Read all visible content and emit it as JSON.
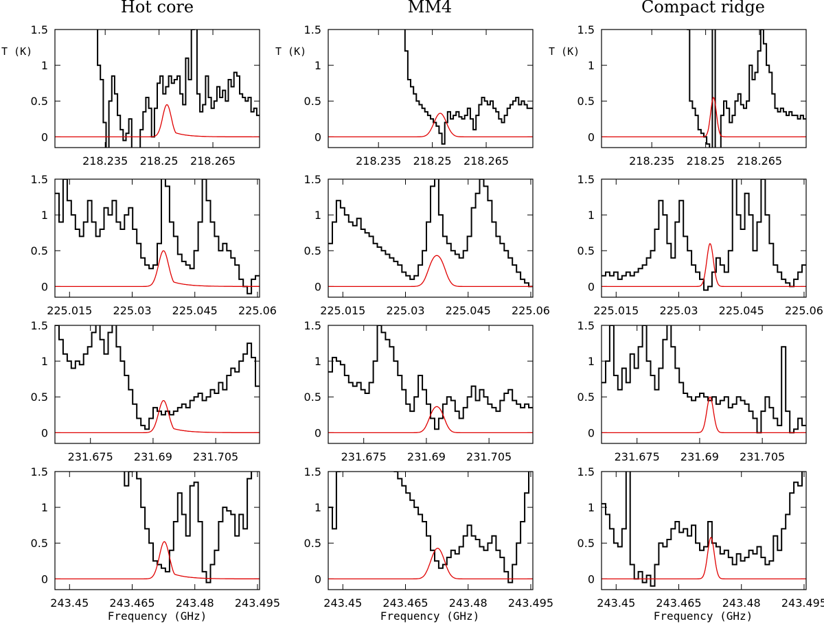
{
  "figure": {
    "columns": [
      "Hot core",
      "MM4",
      "Compact ridge"
    ],
    "y_axis_label": "T (K)",
    "x_axis_label": "Frequency (GHz)",
    "colors": {
      "observed": "#000000",
      "model": "#e00000"
    }
  },
  "chart_data": {
    "type": "line",
    "layout": "grid 4 rows x 3 columns",
    "ylim": [
      -0.15,
      1.5
    ],
    "yticks": [
      0,
      0.5,
      1,
      1.5
    ],
    "ytick_labels": [
      "0",
      "0.5",
      "1",
      "1.5"
    ],
    "rows": [
      {
        "xlim": [
          218.221,
          218.278
        ],
        "xticks": [
          218.235,
          218.25,
          218.265
        ],
        "xtick_labels": [
          "218.235",
          "218.25",
          "218.265"
        ],
        "line_center": 218.2522
      },
      {
        "xlim": [
          225.0115,
          225.0605
        ],
        "xticks": [
          225.015,
          225.03,
          225.045,
          225.06
        ],
        "xtick_labels": [
          "225.015",
          "225.03",
          "225.045",
          "225.06"
        ],
        "line_center": 225.0375
      },
      {
        "xlim": [
          231.6665,
          231.7155
        ],
        "xticks": [
          231.675,
          231.69,
          231.705
        ],
        "xtick_labels": [
          "231.675",
          "231.69",
          "231.705"
        ],
        "line_center": 231.6925
      },
      {
        "xlim": [
          243.4465,
          243.4955
        ],
        "xticks": [
          243.45,
          243.465,
          243.48,
          243.495
        ],
        "xtick_labels": [
          "243.45",
          "243.465",
          "243.48",
          "243.495"
        ],
        "line_center": 243.4727
      }
    ],
    "panels": [
      {
        "column": "Hot core",
        "row": 0,
        "model": {
          "amp": 0.45,
          "width": 0.0012,
          "wing": 1
        },
        "observed": [
          null,
          null,
          null,
          null,
          null,
          null,
          null,
          null,
          null,
          null,
          null,
          null,
          null,
          null,
          1.6,
          1.0,
          0.8,
          0.2,
          -0.2,
          0.5,
          0.85,
          0.6,
          0.3,
          0.1,
          -0.05,
          0.05,
          0.25,
          -0.2,
          -0.2,
          -0.25,
          0.1,
          0.35,
          0.55,
          0.4,
          0.0,
          0.4,
          0.75,
          0.85,
          0.6,
          0.7,
          0.85,
          0.75,
          0.8,
          0.85,
          0.6,
          0.45,
          1.1,
          0.8,
          1.5,
          1.7,
          0.6,
          0.35,
          0.45,
          0.85,
          0.55,
          0.4,
          0.5,
          0.7,
          0.55,
          0.65,
          0.5,
          0.8,
          0.7,
          0.9,
          0.85,
          0.6,
          0.55,
          0.5,
          0.55,
          0.35,
          0.4,
          0.3
        ]
      },
      {
        "column": "MM4",
        "row": 0,
        "model": {
          "amp": 0.3,
          "width": 0.0015,
          "split": 0.0015,
          "wing": 0
        },
        "observed": [
          null,
          null,
          null,
          null,
          null,
          null,
          null,
          null,
          null,
          null,
          null,
          null,
          null,
          null,
          null,
          null,
          null,
          null,
          null,
          null,
          null,
          null,
          null,
          null,
          null,
          null,
          1.8,
          1.2,
          0.8,
          0.7,
          0.6,
          0.5,
          0.45,
          0.4,
          0.35,
          0.3,
          0.25,
          0.2,
          0.15,
          0.05,
          -0.1,
          0.2,
          0.35,
          0.25,
          0.3,
          0.35,
          0.28,
          0.25,
          0.3,
          0.4,
          0.25,
          0.1,
          0.3,
          0.45,
          0.55,
          0.5,
          0.45,
          0.5,
          0.4,
          0.35,
          0.25,
          0.2,
          0.3,
          0.4,
          0.45,
          0.5,
          0.55,
          0.45,
          0.5,
          0.45,
          0.4,
          0.4
        ]
      },
      {
        "column": "Compact ridge",
        "row": 0,
        "model": {
          "amp": 0.55,
          "width": 0.0008,
          "wing": 0
        },
        "observed": [
          null,
          null,
          null,
          null,
          null,
          null,
          null,
          null,
          null,
          null,
          null,
          null,
          null,
          null,
          null,
          null,
          null,
          null,
          null,
          null,
          null,
          null,
          null,
          null,
          null,
          null,
          null,
          null,
          null,
          null,
          1.5,
          0.5,
          0.4,
          0.3,
          0.1,
          0.05,
          0.0,
          -0.1,
          -0.3,
          1.8,
          -0.3,
          -0.3,
          0.3,
          0.5,
          0.4,
          0.2,
          0.3,
          0.5,
          0.6,
          0.45,
          0.4,
          0.5,
          1.0,
          0.8,
          0.9,
          1.2,
          1.5,
          1.3,
          1.0,
          0.9,
          0.6,
          0.4,
          0.35,
          0.4,
          0.35,
          0.3,
          0.35,
          0.3,
          0.3,
          0.25,
          0.3,
          0.25
        ]
      },
      {
        "column": "Hot core",
        "row": 1,
        "model": {
          "amp": 0.5,
          "width": 0.0012,
          "wing": 1
        },
        "observed": [
          1.3,
          0.9,
          1.5,
          1.2,
          1.0,
          0.8,
          0.7,
          0.9,
          1.2,
          0.9,
          0.7,
          0.8,
          1.1,
          1.0,
          1.2,
          0.9,
          0.8,
          1.0,
          1.1,
          0.8,
          0.6,
          0.4,
          0.3,
          0.25,
          0.3,
          0.6,
          1.6,
          1.4,
          0.9,
          0.7,
          0.45,
          0.35,
          0.3,
          0.25,
          0.5,
          0.9,
          1.5,
          1.2,
          0.9,
          0.7,
          0.5,
          0.6,
          0.5,
          0.4,
          0.3,
          0.1,
          0.0,
          -0.1,
          0.1,
          0.15
        ]
      },
      {
        "column": "MM4",
        "row": 1,
        "model": {
          "amp": 0.38,
          "width": 0.0013,
          "split": 0.002,
          "wing": 0
        },
        "observed": [
          0.6,
          0.9,
          1.2,
          1.1,
          1.0,
          0.9,
          0.85,
          0.95,
          0.8,
          0.75,
          0.7,
          0.6,
          0.55,
          0.5,
          0.45,
          0.4,
          0.35,
          0.3,
          0.2,
          0.15,
          0.1,
          0.15,
          0.3,
          0.5,
          0.9,
          1.4,
          1.6,
          1.0,
          0.7,
          0.6,
          0.5,
          0.45,
          0.4,
          0.5,
          0.7,
          1.1,
          1.3,
          1.5,
          1.4,
          1.2,
          0.9,
          0.7,
          0.6,
          0.5,
          0.4,
          0.3,
          0.2,
          0.1,
          0.05,
          0.0
        ]
      },
      {
        "column": "Compact ridge",
        "row": 1,
        "model": {
          "amp": 0.6,
          "width": 0.0008,
          "wing": 0
        },
        "observed": [
          0.15,
          0.2,
          0.15,
          0.2,
          0.1,
          0.15,
          0.2,
          0.15,
          0.2,
          0.25,
          0.3,
          0.4,
          0.5,
          0.8,
          1.2,
          1.0,
          0.6,
          0.4,
          0.9,
          1.2,
          0.7,
          0.5,
          0.3,
          0.2,
          0.1,
          -0.05,
          0.0,
          0.2,
          0.4,
          0.3,
          0.2,
          0.5,
          1.6,
          1.0,
          0.8,
          1.3,
          1.0,
          0.5,
          0.9,
          1.5,
          1.0,
          0.6,
          0.3,
          0.2,
          0.1,
          0.05,
          0.0,
          0.1,
          0.2,
          0.3
        ]
      },
      {
        "column": "Hot core",
        "row": 2,
        "model": {
          "amp": 0.45,
          "width": 0.0012,
          "wing": 1
        },
        "observed": [
          1.5,
          1.3,
          1.1,
          1.0,
          0.9,
          1.0,
          0.95,
          1.1,
          1.2,
          1.4,
          1.6,
          1.3,
          1.1,
          1.4,
          1.6,
          1.2,
          1.0,
          0.8,
          0.6,
          0.4,
          0.2,
          0.1,
          0.05,
          0.2,
          0.35,
          0.3,
          0.25,
          0.3,
          0.25,
          0.3,
          0.35,
          0.4,
          0.35,
          0.45,
          0.5,
          0.55,
          0.45,
          0.5,
          0.6,
          0.55,
          0.7,
          0.6,
          0.8,
          0.9,
          0.85,
          1.0,
          1.1,
          1.25,
          1.05,
          0.65
        ]
      },
      {
        "column": "MM4",
        "row": 2,
        "model": {
          "amp": 0.32,
          "width": 0.0012,
          "split": 0.0018,
          "wing": 0
        },
        "observed": [
          0.85,
          1.05,
          1.0,
          0.95,
          0.8,
          0.7,
          0.65,
          0.7,
          0.6,
          0.55,
          0.7,
          1.0,
          1.5,
          1.4,
          1.3,
          1.2,
          1.0,
          0.8,
          0.6,
          0.4,
          0.3,
          0.5,
          0.8,
          0.6,
          0.4,
          0.2,
          0.05,
          0.2,
          0.4,
          0.5,
          0.45,
          0.3,
          0.2,
          0.35,
          0.5,
          0.65,
          0.45,
          0.6,
          0.5,
          0.4,
          0.35,
          0.3,
          0.45,
          0.55,
          0.6,
          0.45,
          0.4,
          0.35,
          0.4,
          0.35
        ]
      },
      {
        "column": "Compact ridge",
        "row": 2,
        "model": {
          "amp": 0.5,
          "width": 0.0008,
          "wing": 0
        },
        "observed": [
          0.7,
          1.0,
          1.5,
          0.8,
          0.6,
          0.9,
          0.7,
          1.1,
          0.9,
          1.2,
          1.5,
          1.0,
          0.8,
          0.6,
          0.9,
          1.3,
          1.6,
          1.2,
          0.9,
          0.7,
          0.55,
          0.5,
          0.45,
          0.5,
          0.55,
          0.5,
          0.45,
          0.5,
          0.4,
          0.45,
          0.5,
          0.35,
          0.4,
          0.5,
          0.45,
          0.4,
          0.3,
          0.2,
          0.0,
          0.3,
          0.5,
          0.35,
          0.2,
          0.1,
          1.2,
          0.3,
          0.0,
          0.05,
          0.2,
          0.1
        ]
      },
      {
        "column": "Hot core",
        "row": 3,
        "model": {
          "amp": 0.52,
          "width": 0.0012,
          "wing": 1
        },
        "observed": [
          null,
          null,
          null,
          null,
          null,
          null,
          null,
          null,
          null,
          null,
          null,
          null,
          null,
          null,
          null,
          null,
          1.6,
          1.3,
          1.5,
          1.6,
          1.4,
          1.0,
          0.7,
          0.5,
          0.25,
          0.2,
          0.15,
          0.1,
          0.4,
          0.8,
          1.2,
          0.9,
          0.6,
          1.3,
          1.35,
          0.8,
          0.1,
          -0.05,
          0.2,
          0.4,
          0.8,
          1.0,
          0.95,
          0.9,
          0.6,
          0.9,
          0.7,
          1.4,
          1.6,
          1.8
        ]
      },
      {
        "column": "MM4",
        "row": 3,
        "model": {
          "amp": 0.38,
          "width": 0.0013,
          "split": 0.0016,
          "wing": 0
        },
        "observed": [
          1.0,
          0.7,
          1.5,
          null,
          null,
          null,
          null,
          null,
          null,
          null,
          null,
          null,
          null,
          null,
          null,
          null,
          1.5,
          1.4,
          1.3,
          1.2,
          1.1,
          1.0,
          0.9,
          0.8,
          0.6,
          0.4,
          0.25,
          0.15,
          0.2,
          0.3,
          0.4,
          0.35,
          0.45,
          0.6,
          0.75,
          0.6,
          0.55,
          0.45,
          0.4,
          0.5,
          0.6,
          0.4,
          0.3,
          0.1,
          -0.05,
          0.2,
          0.5,
          0.8,
          1.2,
          1.6
        ]
      },
      {
        "column": "Compact ridge",
        "row": 3,
        "model": {
          "amp": 0.58,
          "width": 0.0008,
          "wing": 0
        },
        "observed": [
          1.05,
          0.9,
          0.7,
          0.5,
          0.45,
          0.7,
          1.6,
          0.2,
          0.0,
          0.1,
          -0.05,
          0.05,
          -0.1,
          0.2,
          0.5,
          0.45,
          0.55,
          0.7,
          0.8,
          0.65,
          0.7,
          0.6,
          0.75,
          0.5,
          0.4,
          0.45,
          0.8,
          0.5,
          0.45,
          0.35,
          0.4,
          0.3,
          0.2,
          0.35,
          0.25,
          0.3,
          0.4,
          0.35,
          0.45,
          0.3,
          0.2,
          0.25,
          0.6,
          0.4,
          0.7,
          0.9,
          1.2,
          1.35,
          1.3,
          1.6
        ]
      }
    ]
  }
}
